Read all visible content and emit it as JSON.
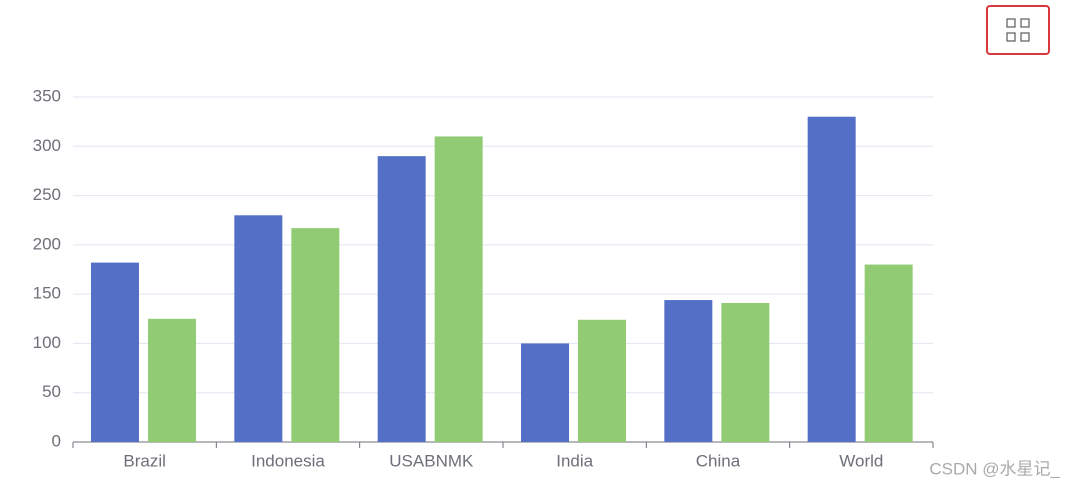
{
  "chart_data": {
    "type": "bar",
    "categories": [
      "Brazil",
      "Indonesia",
      "USABNMK",
      "India",
      "China",
      "World"
    ],
    "series": [
      {
        "color": "#5470c6",
        "values": [
          182,
          230,
          290,
          100,
          144,
          330
        ]
      },
      {
        "color": "#91cc75",
        "values": [
          125,
          217,
          310,
          124,
          141,
          180
        ]
      }
    ],
    "ylim": [
      0,
      350
    ],
    "yticks": [
      0,
      50,
      100,
      150,
      200,
      250,
      300,
      350
    ],
    "grid": true,
    "watermark": "CSDN @水星记_"
  }
}
